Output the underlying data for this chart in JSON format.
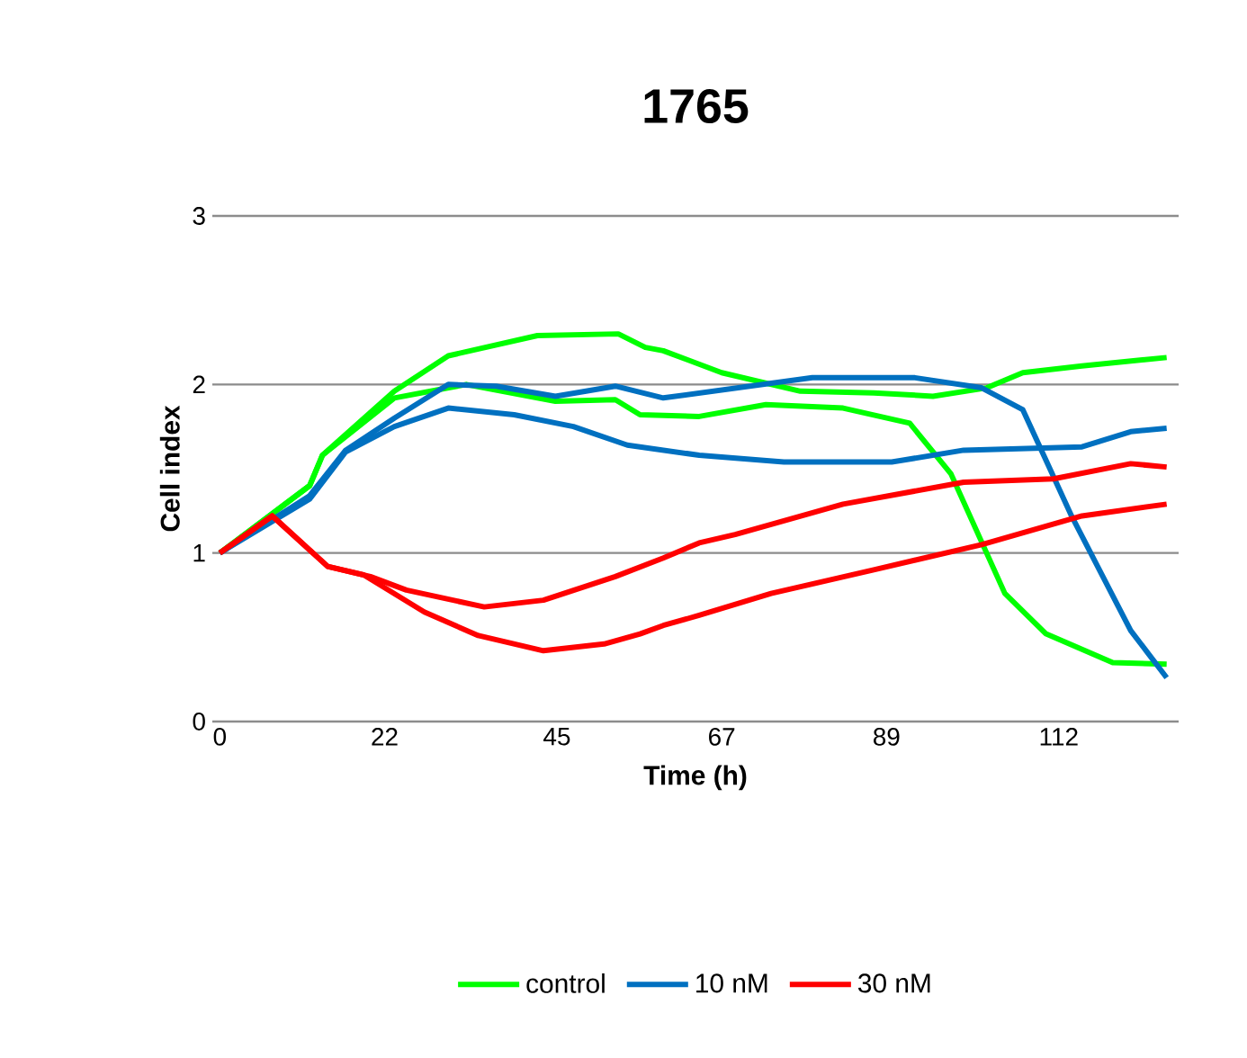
{
  "chart_data": {
    "type": "line",
    "title": "1765",
    "xlabel": "Time (h)",
    "ylabel": "Cell index",
    "xlim": [
      -1,
      128
    ],
    "xticks": [
      0,
      22,
      45,
      67,
      89,
      112
    ],
    "ylim": [
      0,
      3
    ],
    "yticks": [
      0,
      1,
      2,
      3
    ],
    "grid": "y",
    "legend": "bottom",
    "marker": "none",
    "line_style": "solid",
    "series": [
      {
        "name": "control",
        "color": "#00ff00",
        "x": [
          0,
          12,
          13.7,
          23.3,
          30.5,
          42.4,
          53.2,
          56.8,
          59.2,
          67,
          77.5,
          87.3,
          95.2,
          102.4,
          107.2,
          115.1,
          126.4
        ],
        "values": [
          1.0,
          1.4,
          1.58,
          1.96,
          2.17,
          2.29,
          2.3,
          2.22,
          2.2,
          2.07,
          1.96,
          1.95,
          1.93,
          1.98,
          2.07,
          2.11,
          2.16
        ]
      },
      {
        "color": "#00ff00",
        "x": [
          0,
          12,
          13.7,
          23.3,
          32.9,
          44.8,
          52.8,
          56.1,
          64,
          72.9,
          83.2,
          92.1,
          97.6,
          104.8,
          110.3,
          119.2,
          126.4
        ],
        "values": [
          1.0,
          1.4,
          1.58,
          1.92,
          2.0,
          1.9,
          1.91,
          1.82,
          1.81,
          1.88,
          1.86,
          1.77,
          1.47,
          0.76,
          0.52,
          0.35,
          0.34
        ]
      },
      {
        "name": "10 nM",
        "color": "#0070c0",
        "x": [
          0,
          12,
          16.8,
          23.3,
          30.5,
          36.9,
          44.8,
          52.8,
          59.2,
          79.1,
          92.8,
          101.7,
          107.2,
          113.7,
          121.6,
          126.4
        ],
        "values": [
          1.0,
          1.34,
          1.61,
          1.8,
          2.0,
          1.99,
          1.93,
          1.99,
          1.92,
          2.04,
          2.04,
          1.98,
          1.85,
          1.22,
          0.54,
          0.26
        ]
      },
      {
        "color": "#0070c0",
        "x": [
          0,
          12,
          16.8,
          23.3,
          30.5,
          39.3,
          47.2,
          54.4,
          64,
          75.3,
          89.7,
          99.3,
          115.1,
          121.6,
          126.4
        ],
        "values": [
          1.0,
          1.32,
          1.6,
          1.75,
          1.86,
          1.82,
          1.75,
          1.64,
          1.58,
          1.54,
          1.54,
          1.61,
          1.63,
          1.72,
          1.74
        ]
      },
      {
        "name": "30 nM",
        "color": "#ff0000",
        "x": [
          0,
          7,
          14.4,
          20.1,
          24.9,
          35.3,
          43.2,
          52.8,
          59.2,
          64,
          68.8,
          83.2,
          99.3,
          111.3,
          121.6,
          126.4
        ],
        "values": [
          1.0,
          1.22,
          0.92,
          0.86,
          0.78,
          0.68,
          0.72,
          0.86,
          0.97,
          1.06,
          1.11,
          1.29,
          1.42,
          1.44,
          1.53,
          1.51
        ]
      },
      {
        "color": "#ff0000",
        "x": [
          0,
          7,
          14.4,
          19.2,
          27.3,
          34.5,
          43.2,
          51.3,
          56.1,
          59.2,
          64,
          73.6,
          87.3,
          101.7,
          115.1,
          126.4
        ],
        "values": [
          1.0,
          1.22,
          0.92,
          0.87,
          0.65,
          0.51,
          0.42,
          0.46,
          0.52,
          0.57,
          0.63,
          0.76,
          0.9,
          1.05,
          1.22,
          1.29
        ]
      }
    ]
  }
}
